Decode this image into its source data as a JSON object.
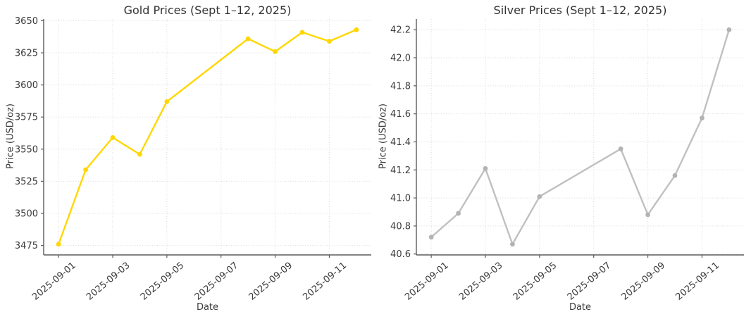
{
  "figure": {
    "background": "#ffffff",
    "text_color": "#3a3a3a",
    "grid_color": "#d9d9d9",
    "spine_color": "#5c5c5c"
  },
  "chart_data": [
    {
      "type": "line",
      "name": "gold",
      "title": "Gold Prices (Sept 1–12, 2025)",
      "xlabel": "Date",
      "ylabel": "Price (USD/oz)",
      "dates": [
        "2025-09-01",
        "2025-09-02",
        "2025-09-03",
        "2025-09-04",
        "2025-09-05",
        "2025-09-08",
        "2025-09-09",
        "2025-09-10",
        "2025-09-11",
        "2025-09-12"
      ],
      "values": [
        3476,
        3534,
        3559,
        3546,
        3587,
        3636,
        3626,
        3641,
        3634,
        3643
      ],
      "x_tick_labels": [
        "2025-09-01",
        "2025-09-03",
        "2025-09-05",
        "2025-09-07",
        "2025-09-09",
        "2025-09-11"
      ],
      "y_ticks": [
        3475,
        3500,
        3525,
        3550,
        3575,
        3600,
        3625,
        3650
      ],
      "y_tick_decimals": 0,
      "ylim": [
        3467.65,
        3651.35
      ],
      "line_color": "#FFD700",
      "marker_color": "#FFD700",
      "grid": true,
      "legend": null
    },
    {
      "type": "line",
      "name": "silver",
      "title": "Silver Prices (Sept 1–12, 2025)",
      "xlabel": "Date",
      "ylabel": "Price (USD/oz)",
      "dates": [
        "2025-09-01",
        "2025-09-02",
        "2025-09-03",
        "2025-09-04",
        "2025-09-05",
        "2025-09-08",
        "2025-09-09",
        "2025-09-10",
        "2025-09-11",
        "2025-09-12"
      ],
      "values": [
        40.72,
        40.89,
        41.21,
        40.67,
        41.01,
        41.35,
        40.88,
        41.16,
        41.57,
        42.2
      ],
      "x_tick_labels": [
        "2025-09-01",
        "2025-09-03",
        "2025-09-05",
        "2025-09-07",
        "2025-09-09",
        "2025-09-11"
      ],
      "y_ticks": [
        40.6,
        40.8,
        41.0,
        41.2,
        41.4,
        41.6,
        41.8,
        42.0,
        42.2
      ],
      "y_tick_decimals": 1,
      "ylim": [
        40.5935,
        42.2765
      ],
      "line_color": "#C0C0C0",
      "marker_color": "#B3B3B3",
      "grid": true,
      "legend": null
    }
  ]
}
